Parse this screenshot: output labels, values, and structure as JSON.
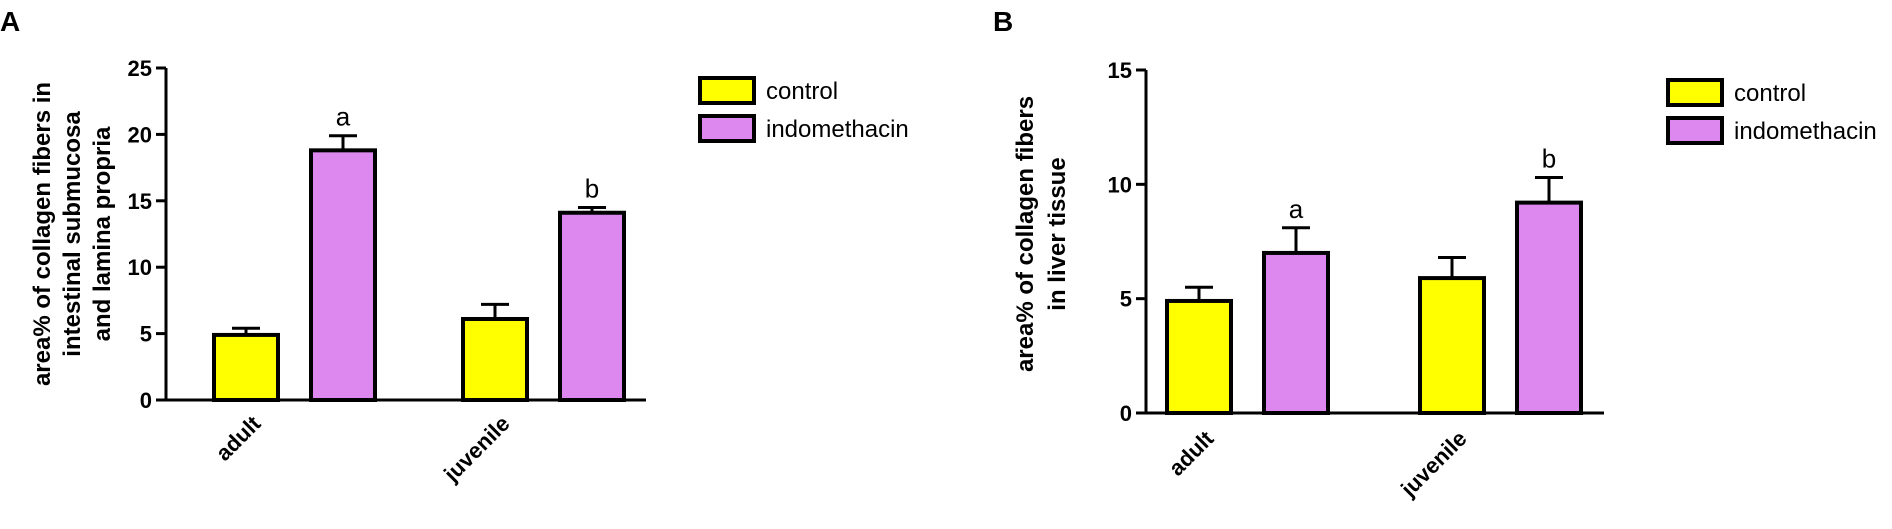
{
  "colors": {
    "control": "#ffff00",
    "indomethacin": "#dd88ee",
    "axis": "#000000"
  },
  "chart_data": [
    {
      "panel_label": "A",
      "type": "bar",
      "title": "",
      "xlabel": "",
      "ylabel_lines": [
        "area% of collagen fibers in",
        "intestinal submucosa",
        "and lamina propria"
      ],
      "ylim": [
        0,
        25
      ],
      "yticks": [
        0,
        5,
        10,
        15,
        20,
        25
      ],
      "tick_labels": [
        "0",
        "5",
        "10",
        "15",
        "20",
        "25"
      ],
      "categories": [
        "adult",
        "juvenile"
      ],
      "series": [
        {
          "name": "control",
          "values": [
            4.9,
            6.1
          ],
          "errors": [
            0.5,
            1.1
          ],
          "annotations": [
            "",
            ""
          ]
        },
        {
          "name": "indomethacin",
          "values": [
            18.8,
            14.1
          ],
          "errors": [
            1.1,
            0.4
          ],
          "annotations": [
            "a",
            "b"
          ]
        }
      ],
      "legend": {
        "position": "top-right",
        "entries": [
          "control",
          "indomethacin"
        ]
      },
      "grid": false
    },
    {
      "panel_label": "B",
      "type": "bar",
      "title": "",
      "xlabel": "",
      "ylabel_lines": [
        "area% of collagen fibers",
        "in liver tissue"
      ],
      "ylim": [
        0,
        15
      ],
      "yticks": [
        0,
        5,
        10,
        15
      ],
      "tick_labels": [
        "0",
        "5",
        "10",
        "15"
      ],
      "categories": [
        "adult",
        "juvenile"
      ],
      "series": [
        {
          "name": "control",
          "values": [
            4.9,
            5.9
          ],
          "errors": [
            0.6,
            0.9
          ],
          "annotations": [
            "",
            ""
          ]
        },
        {
          "name": "indomethacin",
          "values": [
            7.0,
            9.2
          ],
          "errors": [
            1.1,
            1.1
          ],
          "annotations": [
            "a",
            "b"
          ]
        }
      ],
      "legend": {
        "position": "top-right",
        "entries": [
          "control",
          "indomethacin"
        ]
      },
      "grid": false
    }
  ]
}
